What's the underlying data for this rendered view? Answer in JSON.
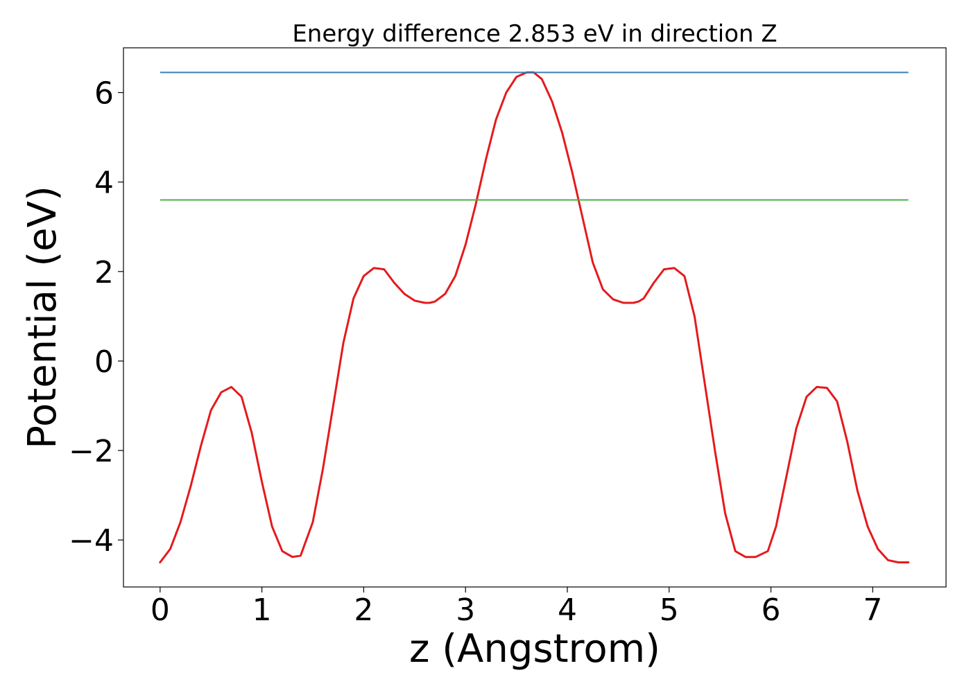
{
  "chart_data": {
    "type": "line",
    "title": "Energy difference 2.853 eV in direction Z",
    "xlabel": "z (Angstrom)",
    "ylabel": "Potential (eV)",
    "xlim": [
      -0.36,
      7.72
    ],
    "ylim": [
      -5.05,
      7.0
    ],
    "x_ticks": [
      0,
      1,
      2,
      3,
      4,
      5,
      6,
      7
    ],
    "x_tick_labels": [
      "0",
      "1",
      "2",
      "3",
      "4",
      "5",
      "6",
      "7"
    ],
    "y_ticks": [
      -4,
      -2,
      0,
      2,
      4,
      6
    ],
    "y_tick_labels": [
      "−4",
      "−2",
      "0",
      "2",
      "4",
      "6"
    ],
    "grid": false,
    "legend": "none",
    "series": [
      {
        "kind": "curve",
        "color": "#e41a1c",
        "x": [
          0,
          0.1,
          0.2,
          0.3,
          0.4,
          0.5,
          0.6,
          0.7,
          0.8,
          0.9,
          1.0,
          1.1,
          1.2,
          1.3,
          1.38,
          1.5,
          1.6,
          1.7,
          1.8,
          1.9,
          2.0,
          2.1,
          2.2,
          2.3,
          2.4,
          2.5,
          2.6,
          2.65,
          2.7,
          2.8,
          2.9,
          3.0,
          3.1,
          3.2,
          3.3,
          3.4,
          3.5,
          3.6,
          3.67,
          3.75,
          3.85,
          3.95,
          4.05,
          4.15,
          4.25,
          4.35,
          4.45,
          4.55,
          4.65,
          4.7,
          4.75,
          4.85,
          4.95,
          5.05,
          5.15,
          5.25,
          5.35,
          5.45,
          5.55,
          5.65,
          5.75,
          5.85,
          5.97,
          6.05,
          6.15,
          6.25,
          6.35,
          6.45,
          6.55,
          6.65,
          6.75,
          6.85,
          6.95,
          7.05,
          7.15,
          7.25,
          7.35
        ],
        "y": [
          -4.5,
          -4.2,
          -3.6,
          -2.8,
          -1.9,
          -1.1,
          -0.7,
          -0.58,
          -0.8,
          -1.6,
          -2.7,
          -3.7,
          -4.25,
          -4.38,
          -4.35,
          -3.6,
          -2.4,
          -1.0,
          0.4,
          1.4,
          1.9,
          2.08,
          2.05,
          1.75,
          1.5,
          1.35,
          1.3,
          1.3,
          1.33,
          1.5,
          1.9,
          2.6,
          3.5,
          4.5,
          5.4,
          6.0,
          6.35,
          6.45,
          6.45,
          6.3,
          5.8,
          5.1,
          4.2,
          3.2,
          2.2,
          1.6,
          1.38,
          1.3,
          1.3,
          1.33,
          1.4,
          1.75,
          2.05,
          2.08,
          1.9,
          1.0,
          -0.5,
          -2.0,
          -3.4,
          -4.25,
          -4.38,
          -4.38,
          -4.25,
          -3.7,
          -2.6,
          -1.5,
          -0.8,
          -0.58,
          -0.6,
          -0.9,
          -1.8,
          -2.9,
          -3.7,
          -4.2,
          -4.45,
          -4.5,
          -4.5
        ]
      },
      {
        "kind": "hline",
        "color": "#377eb8",
        "y": 6.45,
        "x": [
          0,
          7.35
        ]
      },
      {
        "kind": "hline",
        "color": "#4daf4a",
        "y": 3.6,
        "x": [
          0,
          7.35
        ]
      }
    ]
  }
}
